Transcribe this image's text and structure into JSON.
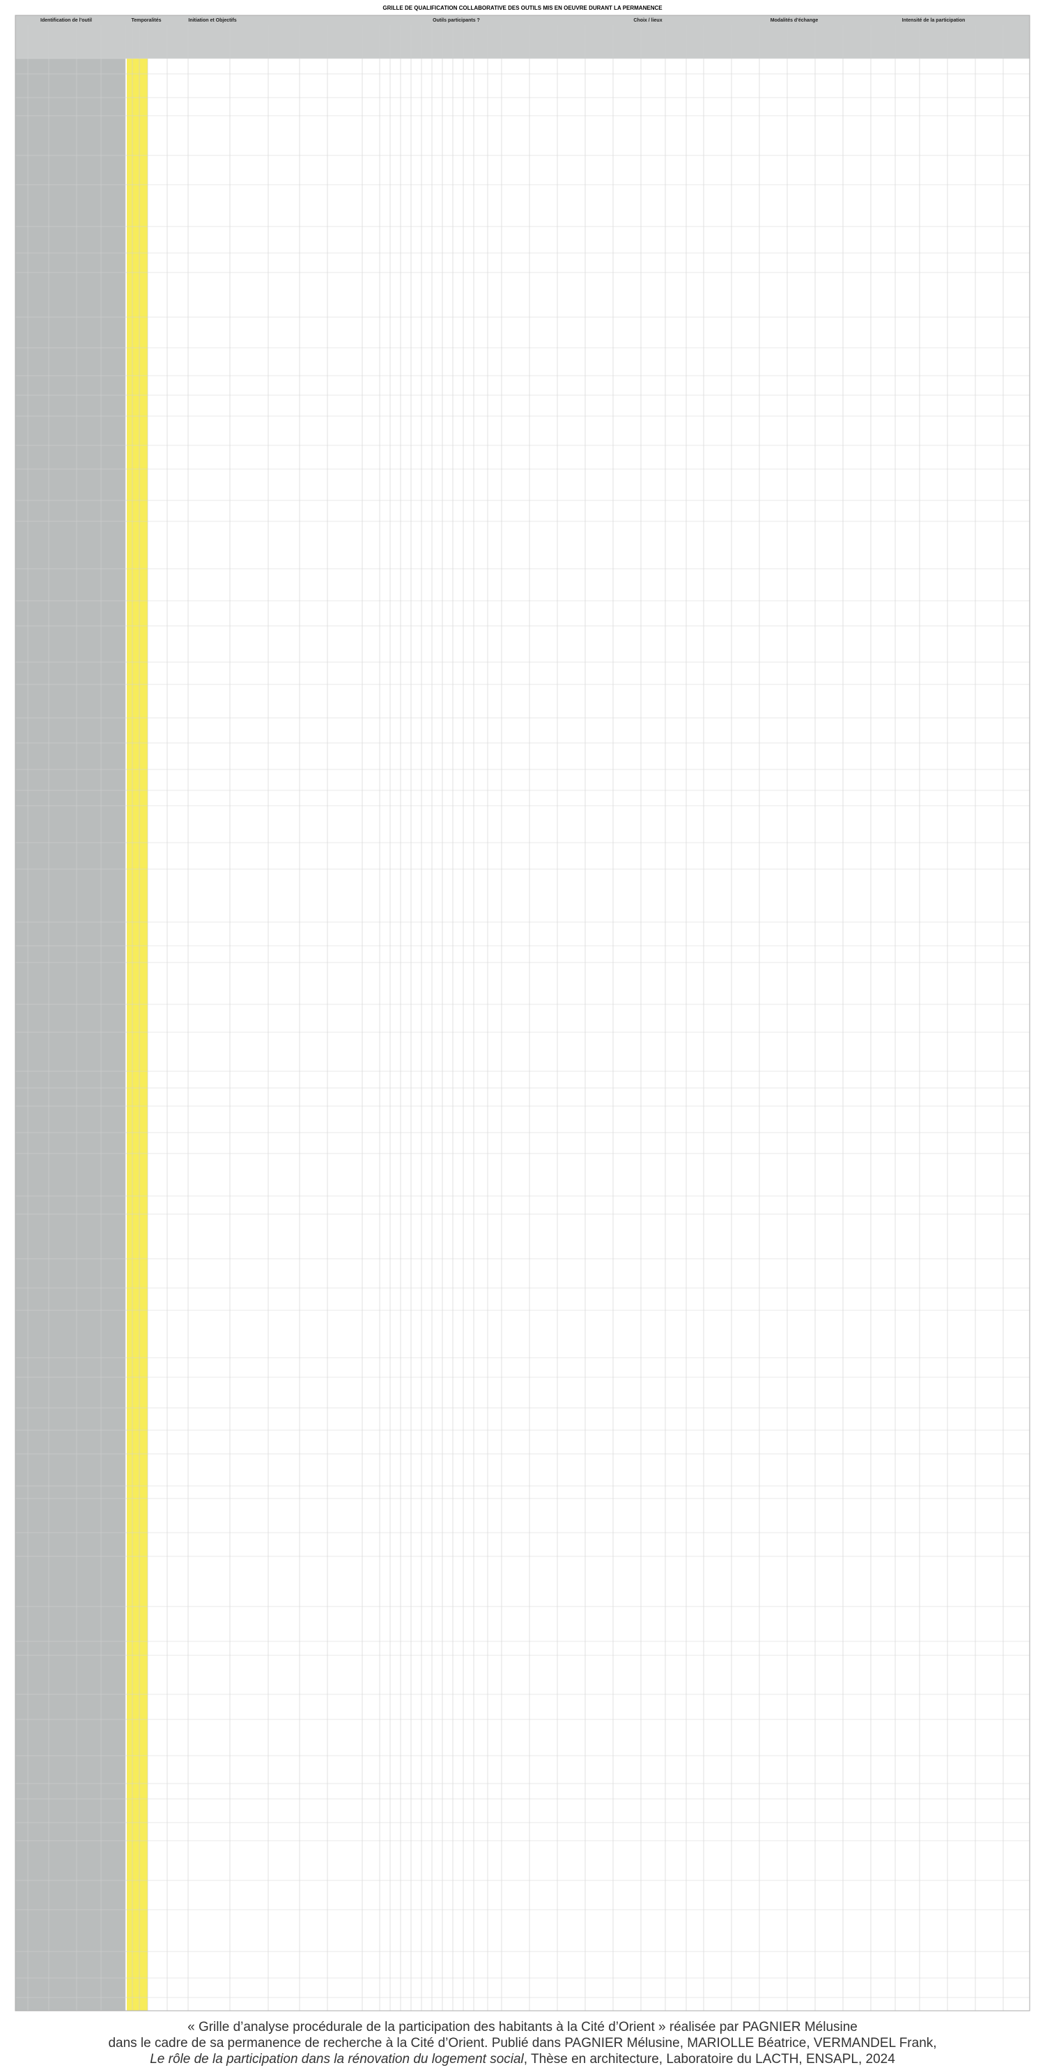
{
  "header": {
    "title": "GRILLE DE QUALIFICATION COLLABORATIVE DES OUTILS MIS EN OEUVRE DURANT LA PERMANENCE"
  },
  "table": {
    "groups": [
      "Identification de l'outil",
      "Temporalités",
      "Initiation et Objectifs",
      "Outils participants ?",
      "Choix / lieux",
      "Modalités d'échange",
      "Intensité de la participation"
    ]
  },
  "caption": {
    "line1": "« Grille d’analyse procédurale de la participation des habitants à la Cité d’Orient » réalisée par PAGNIER Mélusine",
    "line2": "dans le cadre de sa permanence de recherche à la Cité d’Orient. Publié dans PAGNIER Mélusine, MARIOLLE Béatrice, VERMANDEL Frank,",
    "line3_italic": "Le rôle de la participation dans la rénovation du logement social",
    "line3_rest": ", Thèse en architecture, Laboratoire du LACTH, ENSAPL, 2024"
  }
}
